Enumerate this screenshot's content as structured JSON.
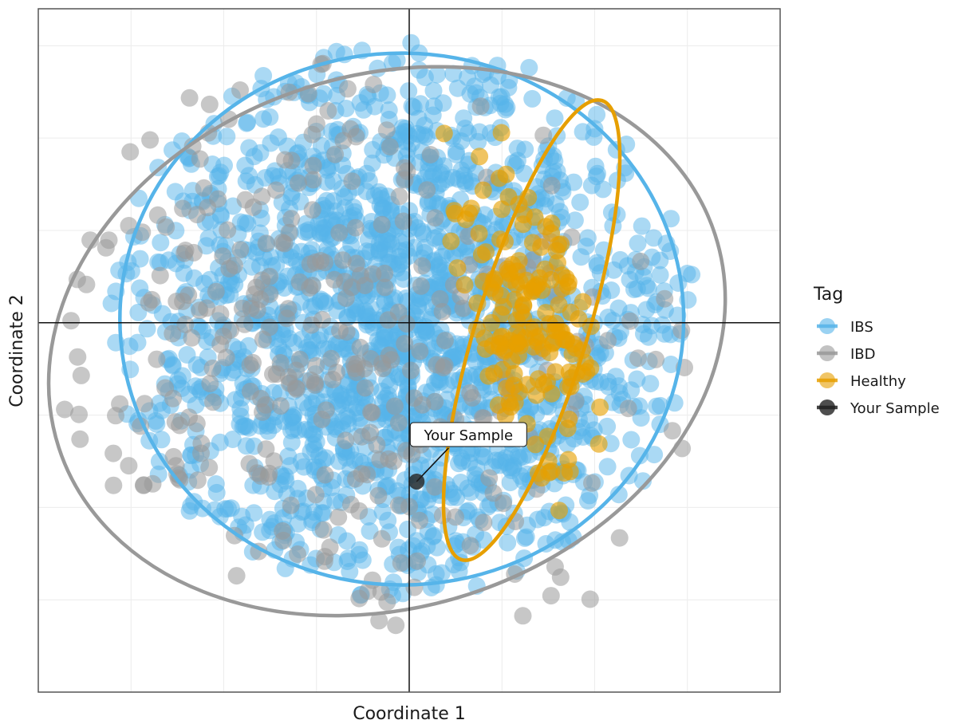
{
  "chart_data": {
    "type": "scatter",
    "xlabel": "Coordinate 1",
    "ylabel": "Coordinate 2",
    "xlim": [
      -1.0,
      1.0
    ],
    "ylim": [
      -1.0,
      0.85
    ],
    "grid": true,
    "ticks_visible": false,
    "reference_lines": {
      "x": 0,
      "y": 0
    },
    "legend": {
      "title": "Tag",
      "placement": "right",
      "entries": [
        {
          "label": "IBS",
          "color": "#56B4E9"
        },
        {
          "label": "IBD",
          "color": "#999999"
        },
        {
          "label": "Healthy",
          "color": "#E69F00"
        },
        {
          "label": "Your Sample",
          "color": "#222222"
        }
      ]
    },
    "series": [
      {
        "name": "IBS",
        "color": "#56B4E9",
        "point_count": 1800,
        "center": [
          -0.02,
          -0.02
        ],
        "spread": [
          0.4,
          0.4
        ],
        "ellipse": {
          "cx": -0.02,
          "cy": 0.01,
          "rx": 0.76,
          "ry": 0.72,
          "angle_deg": 0
        }
      },
      {
        "name": "IBD",
        "color": "#999999",
        "point_count": 340,
        "center": [
          -0.25,
          -0.1
        ],
        "spread": [
          0.42,
          0.38
        ],
        "ellipse": {
          "cx": -0.06,
          "cy": -0.05,
          "rx": 0.93,
          "ry": 0.72,
          "angle_deg": -18
        }
      },
      {
        "name": "Healthy",
        "color": "#E69F00",
        "point_count": 170,
        "center": [
          0.34,
          0.05
        ],
        "spread": [
          0.14,
          0.25
        ],
        "ellipse": {
          "cx": 0.33,
          "cy": -0.02,
          "rx": 0.15,
          "ry": 0.65,
          "angle_deg": 17
        }
      }
    ],
    "your_sample": {
      "name": "Your Sample",
      "x": 0.02,
      "y": -0.43,
      "label": "Your Sample",
      "color": "#222222"
    }
  }
}
